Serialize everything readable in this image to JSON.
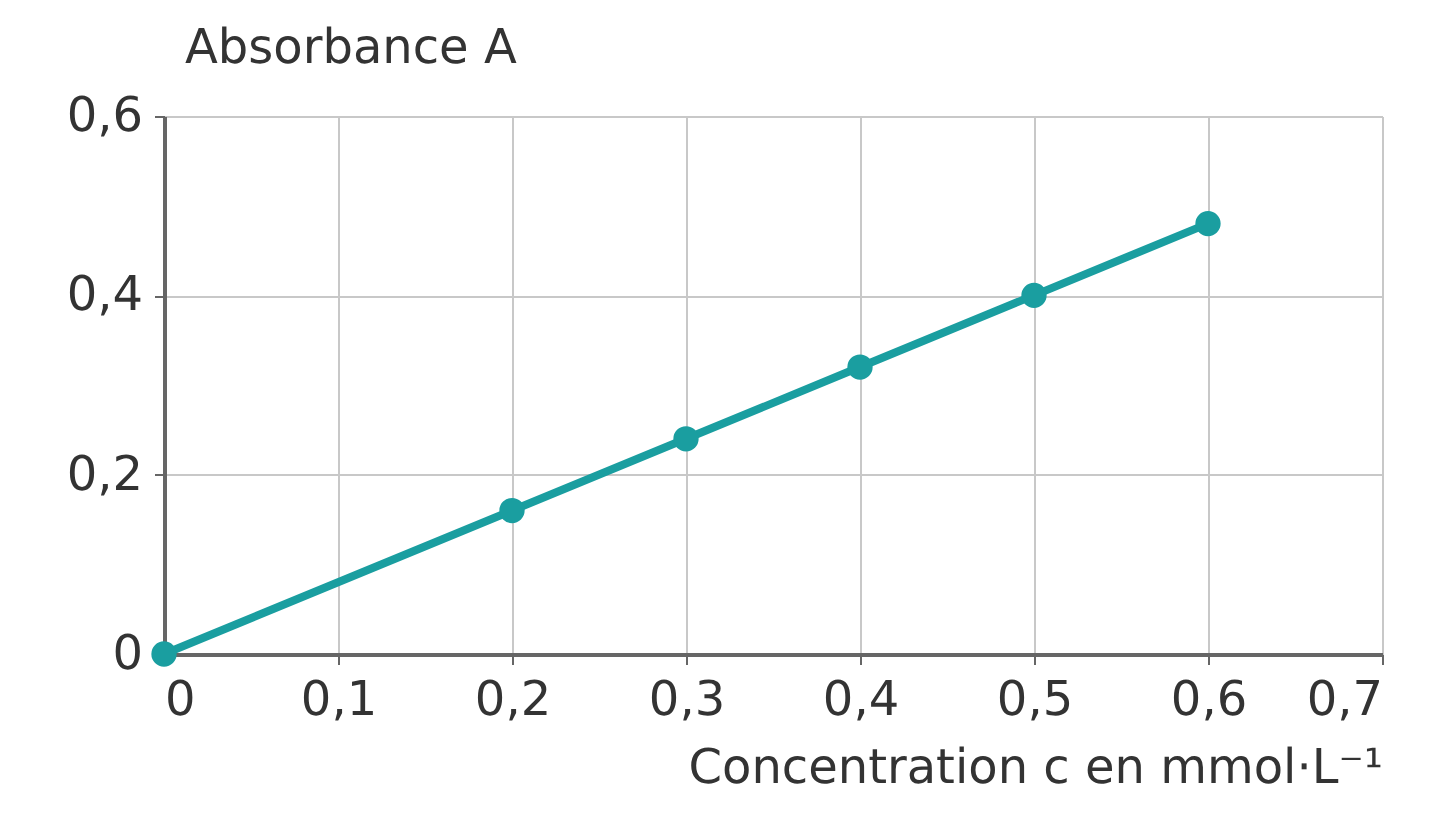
{
  "chart_data": {
    "type": "line",
    "xlabel": "Concentration c en mmol·L⁻¹",
    "ylabel": "Absorbance A",
    "x": [
      0,
      0.2,
      0.3,
      0.4,
      0.5,
      0.6
    ],
    "series": [
      {
        "color": "#1a9ea0",
        "values": [
          0,
          0.16,
          0.24,
          0.32,
          0.4,
          0.48
        ]
      }
    ],
    "xlim": [
      0,
      0.7
    ],
    "ylim": [
      0,
      0.6
    ],
    "xticks": [
      {
        "value": 0,
        "label": "0"
      },
      {
        "value": 0.1,
        "label": "0,1"
      },
      {
        "value": 0.2,
        "label": "0,2"
      },
      {
        "value": 0.3,
        "label": "0,3"
      },
      {
        "value": 0.4,
        "label": "0,4"
      },
      {
        "value": 0.5,
        "label": "0,5"
      },
      {
        "value": 0.6,
        "label": "0,6"
      },
      {
        "value": 0.7,
        "label": "0,7"
      }
    ],
    "yticks": [
      {
        "value": 0,
        "label": "0"
      },
      {
        "value": 0.2,
        "label": "0,2"
      },
      {
        "value": 0.4,
        "label": "0,4"
      },
      {
        "value": 0.6,
        "label": "0,6"
      }
    ],
    "grid": true,
    "marker": "circle",
    "line_style": "solid"
  }
}
